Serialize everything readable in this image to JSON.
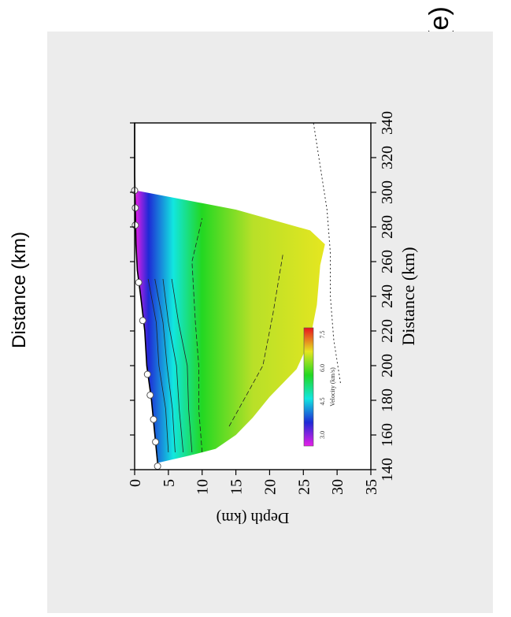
{
  "panel_label": "(e)",
  "top_title": "Distance (km)",
  "colors": {
    "panel_bg": "#ececec",
    "plot_bg": "#ffffff",
    "velocity_scale": [
      "#e81ee8",
      "#1e2ad6",
      "#12e6e0",
      "#22d822",
      "#e6e620",
      "#e8141e"
    ]
  },
  "chart_data": {
    "type": "heatmap",
    "xlabel": "Distance (km)",
    "ylabel": "Depth (km)",
    "xlim": [
      140,
      340
    ],
    "ylim": [
      35,
      0
    ],
    "x_ticks": [
      "140",
      "160",
      "180",
      "200",
      "220",
      "240",
      "260",
      "280",
      "300",
      "320",
      "340"
    ],
    "y_ticks": [
      "0",
      "5",
      "10",
      "15",
      "20",
      "25",
      "30",
      "35"
    ],
    "colorbar": {
      "label": "Velocity (km/s)",
      "ticks": [
        "3.0",
        "4.5",
        "6.0",
        "7.5"
      ],
      "range": [
        2.5,
        7.8
      ]
    },
    "stations": [
      {
        "x": 142,
        "depth": 3.4
      },
      {
        "x": 156,
        "depth": 3.1
      },
      {
        "x": 169,
        "depth": 2.8
      },
      {
        "x": 183,
        "depth": 2.3
      },
      {
        "x": 195,
        "depth": 1.9
      },
      {
        "x": 226,
        "depth": 1.2
      },
      {
        "x": 248,
        "depth": 0.6
      },
      {
        "x": 281,
        "depth": 0.1
      },
      {
        "x": 291,
        "depth": 0.1
      },
      {
        "x": 301,
        "depth": 0.0
      }
    ],
    "topography": [
      {
        "x": 140,
        "depth": 3.5
      },
      {
        "x": 160,
        "depth": 3.0
      },
      {
        "x": 180,
        "depth": 2.5
      },
      {
        "x": 200,
        "depth": 1.8
      },
      {
        "x": 220,
        "depth": 1.5
      },
      {
        "x": 240,
        "depth": 0.9
      },
      {
        "x": 255,
        "depth": 0.4
      },
      {
        "x": 270,
        "depth": 0.2
      },
      {
        "x": 290,
        "depth": 0.1
      },
      {
        "x": 310,
        "depth": 0.0
      },
      {
        "x": 340,
        "depth": 0.0
      }
    ],
    "model_boundary": [
      {
        "x": 144,
        "depth": 3.5
      },
      {
        "x": 148,
        "depth": 8
      },
      {
        "x": 152,
        "depth": 12
      },
      {
        "x": 160,
        "depth": 15
      },
      {
        "x": 170,
        "depth": 17.5
      },
      {
        "x": 182,
        "depth": 20
      },
      {
        "x": 198,
        "depth": 24
      },
      {
        "x": 215,
        "depth": 26
      },
      {
        "x": 235,
        "depth": 27
      },
      {
        "x": 258,
        "depth": 27.5
      },
      {
        "x": 270,
        "depth": 28.2
      },
      {
        "x": 278,
        "depth": 26
      },
      {
        "x": 290,
        "depth": 15
      },
      {
        "x": 301,
        "depth": 0.2
      }
    ],
    "moho_dashed": [
      {
        "x": 190,
        "depth": 30.5
      },
      {
        "x": 215,
        "depth": 29.5
      },
      {
        "x": 240,
        "depth": 29
      },
      {
        "x": 265,
        "depth": 29
      },
      {
        "x": 290,
        "depth": 28.5
      },
      {
        "x": 315,
        "depth": 27.5
      },
      {
        "x": 340,
        "depth": 26.5
      }
    ],
    "contour_lines": [
      {
        "value": 4.0,
        "points": [
          {
            "x": 150,
            "depth": 5
          },
          {
            "x": 175,
            "depth": 4.6
          },
          {
            "x": 200,
            "depth": 3.6
          },
          {
            "x": 225,
            "depth": 3.2
          },
          {
            "x": 250,
            "depth": 2.0
          }
        ]
      },
      {
        "value": 4.5,
        "points": [
          {
            "x": 150,
            "depth": 6
          },
          {
            "x": 175,
            "depth": 5.6
          },
          {
            "x": 200,
            "depth": 4.8
          },
          {
            "x": 225,
            "depth": 4.2
          },
          {
            "x": 250,
            "depth": 3.0
          }
        ]
      },
      {
        "value": 5.0,
        "points": [
          {
            "x": 150,
            "depth": 7.2
          },
          {
            "x": 175,
            "depth": 6.6
          },
          {
            "x": 200,
            "depth": 6.2
          },
          {
            "x": 225,
            "depth": 5.0
          },
          {
            "x": 250,
            "depth": 4.2
          }
        ]
      },
      {
        "value": 5.5,
        "points": [
          {
            "x": 150,
            "depth": 8.5
          },
          {
            "x": 175,
            "depth": 8.0
          },
          {
            "x": 200,
            "depth": 7.8
          },
          {
            "x": 225,
            "depth": 6.5
          },
          {
            "x": 250,
            "depth": 5.5
          }
        ]
      },
      {
        "value": 6.0,
        "points": [
          {
            "x": 150,
            "depth": 10
          },
          {
            "x": 175,
            "depth": 9.5
          },
          {
            "x": 200,
            "depth": 9.5
          },
          {
            "x": 225,
            "depth": 9.0
          },
          {
            "x": 260,
            "depth": 8.5
          },
          {
            "x": 285,
            "depth": 10
          }
        ]
      },
      {
        "value": 6.5,
        "points": [
          {
            "x": 165,
            "depth": 14
          },
          {
            "x": 200,
            "depth": 19
          },
          {
            "x": 230,
            "depth": 20.5
          },
          {
            "x": 265,
            "depth": 22
          }
        ]
      }
    ]
  }
}
